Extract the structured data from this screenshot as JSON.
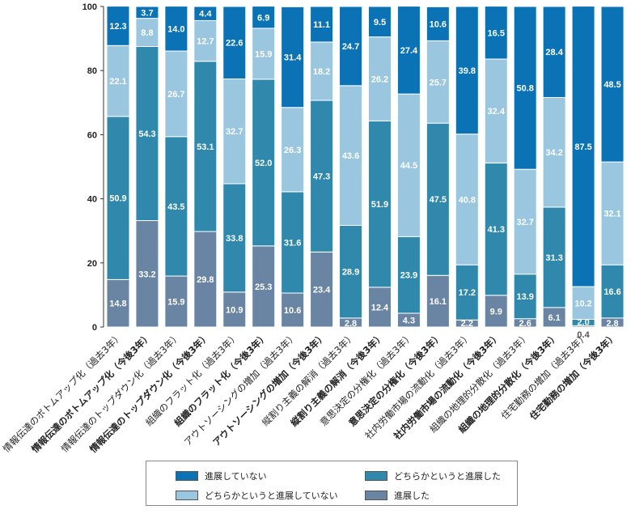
{
  "chart_data": {
    "type": "bar",
    "stacked": true,
    "ylim": [
      0,
      100
    ],
    "yticks": [
      0,
      20,
      40,
      60,
      80,
      100
    ],
    "grid": false,
    "legend_position": "bottom",
    "categories": [
      "情報伝達のボトムアップ化（過去3年）",
      "情報伝達のボトムアップ化（今後3年）",
      "情報伝達のトップダウン化（過去3年）",
      "情報伝達のトップダウン化（今後3年）",
      "組織のフラット化（過去3年）",
      "組織のフラット化（今後3年）",
      "アウトソーシングの増加（過去3年）",
      "アウトソーシングの増加（今後3年）",
      "縦割り主義の解消（過去3年）",
      "縦割り主義の解消（今後3年）",
      "意思決定の分権化（過去3年）",
      "意思決定の分権化（今後3年）",
      "社内労働市場の流動化（過去3年）",
      "社内労働市場の流動化（今後3年）",
      "組織の地理的分散化（過去3年）",
      "組織の地理的分散化（今後3年）",
      "住宅勤務の増加（過去3年）",
      "住宅勤務の増加（今後3年）"
    ],
    "series": [
      {
        "name": "進展した",
        "color": "#6a84a4",
        "values": [
          14.8,
          33.2,
          15.9,
          29.8,
          10.9,
          25.3,
          10.6,
          23.4,
          2.8,
          12.4,
          4.3,
          16.1,
          2.2,
          9.9,
          2.6,
          6.1,
          0.4,
          2.8
        ]
      },
      {
        "name": "どちらかというと進展した",
        "color": "#3089ad",
        "values": [
          50.9,
          54.3,
          43.5,
          53.1,
          33.8,
          52.0,
          31.6,
          47.3,
          28.9,
          51.9,
          23.9,
          47.5,
          17.2,
          41.3,
          13.9,
          31.3,
          2.0,
          16.6
        ]
      },
      {
        "name": "どちらかというと進展していない",
        "color": "#9ac6e0",
        "values": [
          22.1,
          8.8,
          26.7,
          12.7,
          32.7,
          15.9,
          26.3,
          18.2,
          43.6,
          26.2,
          44.5,
          25.7,
          40.8,
          32.4,
          32.7,
          34.2,
          10.2,
          32.1
        ]
      },
      {
        "name": "進展していない",
        "color": "#0b73b5",
        "values": [
          12.3,
          3.7,
          14.0,
          4.4,
          22.6,
          6.9,
          31.4,
          11.1,
          24.7,
          9.5,
          27.4,
          10.6,
          39.8,
          16.5,
          50.8,
          28.4,
          87.5,
          48.5
        ]
      }
    ],
    "labels": [
      [
        "14.8",
        "50.9",
        "22.1",
        "12.3"
      ],
      [
        "33.2",
        "54.3",
        "8.8",
        "3.7"
      ],
      [
        "15.9",
        "43.5",
        "26.7",
        "14.0"
      ],
      [
        "29.8",
        "53.1",
        "12.7",
        "4.4"
      ],
      [
        "10.9",
        "33.8",
        "32.7",
        "22.6"
      ],
      [
        "25.3",
        "52.0",
        "15.9",
        "6.9"
      ],
      [
        "10.6",
        "31.6",
        "26.3",
        "31.4"
      ],
      [
        "23.4",
        "47.3",
        "18.2",
        "11.1"
      ],
      [
        "2.8",
        "28.9",
        "43.6",
        "24.7"
      ],
      [
        "12.4",
        "51.9",
        "26.2",
        "9.5"
      ],
      [
        "4.3",
        "23.9",
        "44.5",
        "27.4"
      ],
      [
        "16.1",
        "47.5",
        "25.7",
        "10.6"
      ],
      [
        "2.2",
        "17.2",
        "40.8",
        "39.8"
      ],
      [
        "9.9",
        "41.3",
        "32.4",
        "16.5"
      ],
      [
        "2.6",
        "13.9",
        "32.7",
        "50.8"
      ],
      [
        "6.1",
        "31.3",
        "34.2",
        "28.4"
      ],
      [
        "0.4",
        "2.0",
        "10.2",
        "87.5"
      ],
      [
        "2.8",
        "16.6",
        "32.1",
        "48.5"
      ]
    ],
    "bold_categories": [
      false,
      true,
      false,
      true,
      false,
      true,
      false,
      true,
      false,
      true,
      false,
      true,
      false,
      true,
      false,
      true,
      false,
      true
    ]
  },
  "legend": {
    "items": [
      {
        "label": "進展していない",
        "color": "#0b73b5"
      },
      {
        "label": "どちらかというと進展した",
        "color": "#3089ad"
      },
      {
        "label": "どちらかというと進展していない",
        "color": "#9ac6e0"
      },
      {
        "label": "進展した",
        "color": "#6a84a4"
      }
    ]
  }
}
